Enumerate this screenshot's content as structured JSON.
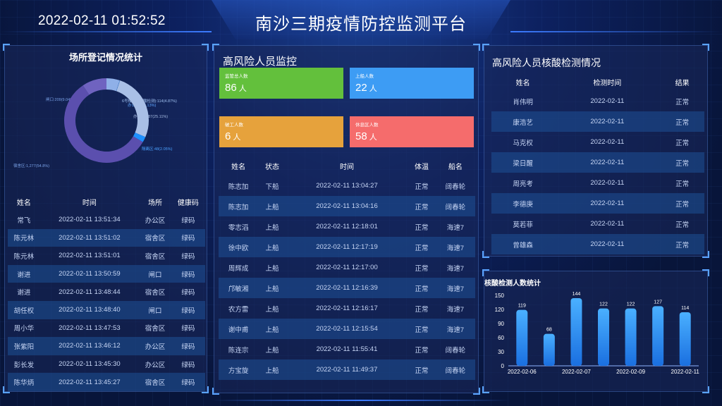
{
  "header": {
    "datetime": "2022-02-11 01:52:52",
    "title": "南沙三期疫情防控监测平台"
  },
  "colors": {
    "accent": "#3c7bff",
    "green": "#63c03c",
    "blue": "#3d9cf4",
    "orange": "#e6a23c",
    "red": "#f56c6c",
    "bar_top": "#4ab0ff",
    "bar_bottom": "#1a6fe0"
  },
  "venue": {
    "title": "场所登记情况统计",
    "columns": [
      "姓名",
      "时间",
      "场所",
      "健康码"
    ],
    "rows": [
      [
        "常飞",
        "2022-02-11 13:51:34",
        "办公区",
        "绿码"
      ],
      [
        "陈元林",
        "2022-02-11 13:51:02",
        "宿舍区",
        "绿码"
      ],
      [
        "陈元林",
        "2022-02-11 13:51:01",
        "宿舍区",
        "绿码"
      ],
      [
        "谢进",
        "2022-02-11 13:50:59",
        "闸口",
        "绿码"
      ],
      [
        "谢进",
        "2022-02-11 13:48:44",
        "宿舍区",
        "绿码"
      ],
      [
        "胡任权",
        "2022-02-11 13:48:40",
        "闸口",
        "绿码"
      ],
      [
        "周小华",
        "2022-02-11 13:47:53",
        "宿舍区",
        "绿码"
      ],
      [
        "张紫阳",
        "2022-02-11 13:46:12",
        "办公区",
        "绿码"
      ],
      [
        "彭长发",
        "2022-02-11 13:45:30",
        "办公区",
        "绿码"
      ],
      [
        "陈华炳",
        "2022-02-11 13:45:27",
        "宿舍区",
        "绿码"
      ]
    ]
  },
  "donut_data": {
    "type": "pie",
    "slices": [
      {
        "label": "宿舍区:1,277(54.8%)",
        "value": 54.8,
        "color": "#5b4fae"
      },
      {
        "label": "闸口:209(9.04%)",
        "value": 9.04,
        "color": "#6f63c0"
      },
      {
        "label": "6号楼1层(核酸检测):114(4.87%)",
        "value": 4.87,
        "color": "#8fb0e8"
      },
      {
        "label": "办公区:3(0.13%)",
        "value": 0.13,
        "color": "#3b8de8"
      },
      {
        "label": "办公区:587(25.11%)",
        "value": 25.11,
        "color": "#a9bfe6"
      },
      {
        "label": "隔离区:48(2.05%)",
        "value": 2.05,
        "color": "#1e90ff"
      }
    ]
  },
  "monitor": {
    "title": "高风险人员监控",
    "stats": [
      {
        "label": "监管总人数",
        "value": "86",
        "unit": "人"
      },
      {
        "label": "上船人数",
        "value": "22",
        "unit": "人"
      },
      {
        "label": "破工人数",
        "value": "6",
        "unit": "人"
      },
      {
        "label": "休息区人数",
        "value": "58",
        "unit": "人"
      }
    ],
    "columns": [
      "姓名",
      "状态",
      "时间",
      "体温",
      "船名"
    ],
    "rows": [
      [
        "陈志加",
        "下船",
        "2022-02-11 13:04:27",
        "正常",
        "阔春轮"
      ],
      [
        "陈志加",
        "上船",
        "2022-02-11 13:04:16",
        "正常",
        "阔春轮"
      ],
      [
        "零志滔",
        "上船",
        "2022-02-11 12:18:01",
        "正常",
        "海速7"
      ],
      [
        "徐中欧",
        "上船",
        "2022-02-11 12:17:19",
        "正常",
        "海速7"
      ],
      [
        "周辉成",
        "上船",
        "2022-02-11 12:17:00",
        "正常",
        "海速7"
      ],
      [
        "邝敏湘",
        "上船",
        "2022-02-11 12:16:39",
        "正常",
        "海速7"
      ],
      [
        "农方雷",
        "上船",
        "2022-02-11 12:16:17",
        "正常",
        "海速7"
      ],
      [
        "谢中甫",
        "上船",
        "2022-02-11 12:15:54",
        "正常",
        "海速7"
      ],
      [
        "陈连宗",
        "上船",
        "2022-02-11 11:55:41",
        "正常",
        "阔春轮"
      ],
      [
        "方宝旋",
        "上船",
        "2022-02-11 11:49:37",
        "正常",
        "阔春轮"
      ]
    ]
  },
  "nucleic": {
    "title": "高风险人员核酸检测情况",
    "columns": [
      "姓名",
      "检测时间",
      "结果"
    ],
    "rows": [
      [
        "肖伟明",
        "2022-02-11",
        "正常"
      ],
      [
        "康浩艺",
        "2022-02-11",
        "正常"
      ],
      [
        "马克权",
        "2022-02-11",
        "正常"
      ],
      [
        "梁日醒",
        "2022-02-11",
        "正常"
      ],
      [
        "周亮考",
        "2022-02-11",
        "正常"
      ],
      [
        "李德庚",
        "2022-02-11",
        "正常"
      ],
      [
        "莫若菲",
        "2022-02-11",
        "正常"
      ],
      [
        "曾雄森",
        "2022-02-11",
        "正常"
      ]
    ]
  },
  "chart_data": {
    "type": "bar",
    "title": "核酸检测人数统计",
    "values": [
      119,
      68,
      144,
      122,
      122,
      127,
      114
    ],
    "tick_labels": [
      "2022-02-06",
      "2022-02-07",
      "2022-02-09",
      "2022-02-11"
    ],
    "tick_positions": [
      0,
      2,
      4,
      6
    ],
    "y_ticks": [
      "0",
      "30",
      "60",
      "90",
      "120",
      "150"
    ],
    "ylim": [
      0,
      150
    ]
  }
}
